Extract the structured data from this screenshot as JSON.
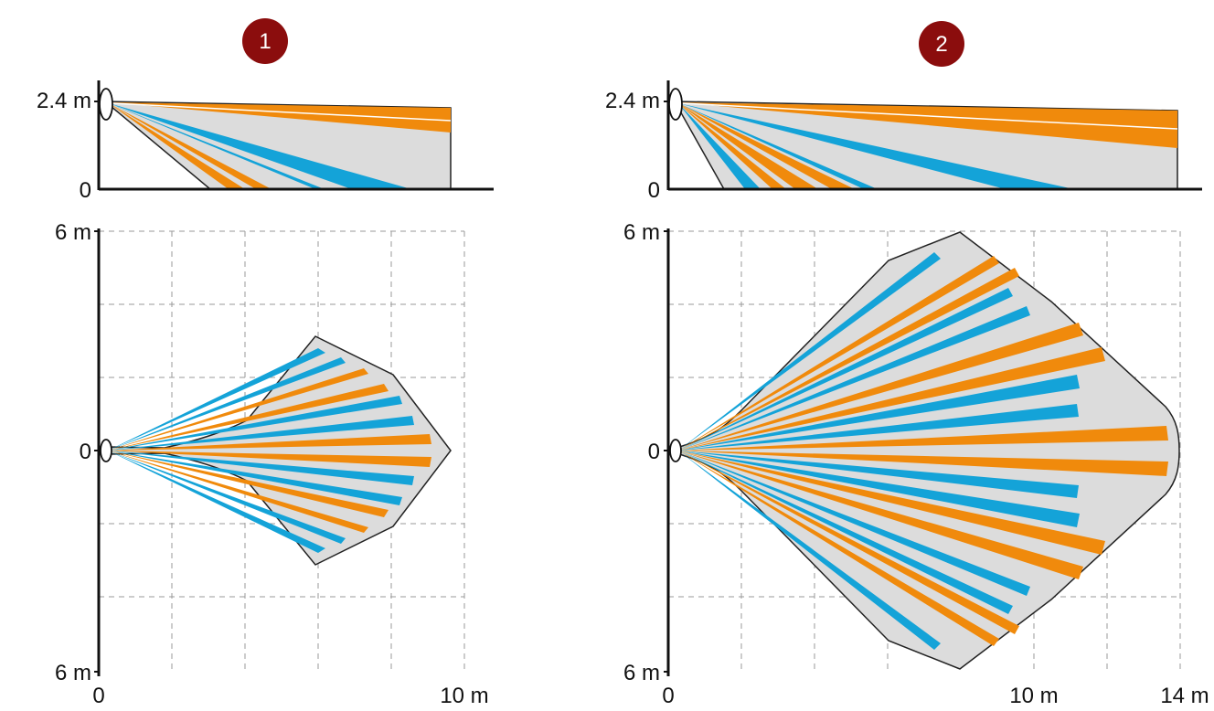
{
  "colors": {
    "badge": "#8b0d0d",
    "zone_fill": "#dcdcdc",
    "beam_orange": "#f08a0c",
    "beam_blue": "#14a3d8",
    "grid": "#9a9a9a",
    "axis": "#111111"
  },
  "panels": [
    {
      "badge": "1",
      "side": {
        "height_label": "2.4 m",
        "zero_label": "0"
      },
      "top": {
        "y_top_label": "6 m",
        "y_mid_label": "0",
        "y_bottom_label": "6 m",
        "x_zero_label": "0",
        "x_labels": [
          "10 m"
        ]
      }
    },
    {
      "badge": "2",
      "side": {
        "height_label": "2.4 m",
        "zero_label": "0"
      },
      "top": {
        "y_top_label": "6 m",
        "y_mid_label": "0",
        "y_bottom_label": "6 m",
        "x_zero_label": "0",
        "x_labels": [
          "10 m",
          "14 m"
        ]
      }
    }
  ]
}
